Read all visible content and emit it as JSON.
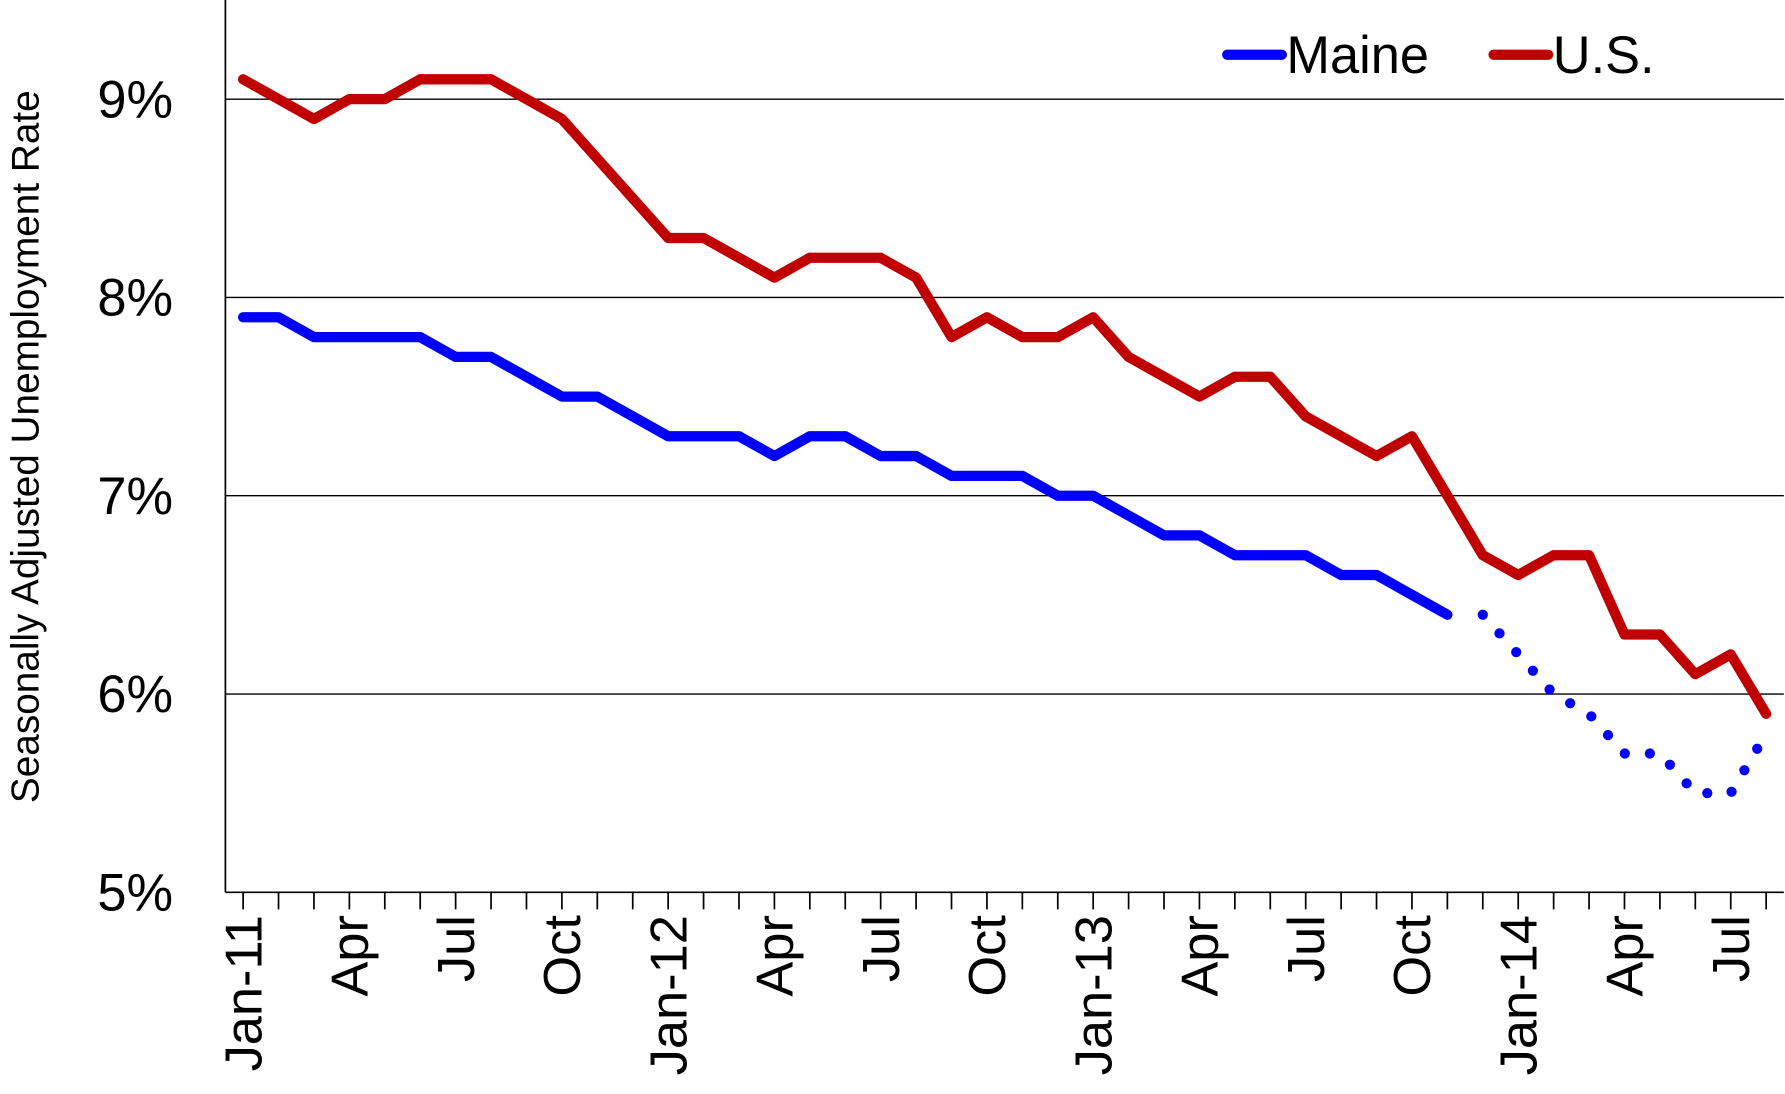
{
  "chart_data": {
    "type": "line",
    "y_label": "Seasonally Adjusted Unemployment Rate",
    "categories": [
      "Jan-11",
      null,
      null,
      "Apr",
      null,
      null,
      "Jul",
      null,
      null,
      "Oct",
      null,
      null,
      "Jan-12",
      null,
      null,
      "Apr",
      null,
      null,
      "Jul",
      null,
      null,
      "Oct",
      null,
      null,
      "Jan-13",
      null,
      null,
      "Apr",
      null,
      null,
      "Jul",
      null,
      null,
      "Oct",
      null,
      null,
      "Jan-14",
      null,
      null,
      "Apr",
      null,
      null,
      "Jul",
      null
    ],
    "series": [
      {
        "name": "Maine",
        "color": "#0000ff",
        "dotted_from": 35,
        "values": [
          7.9,
          7.9,
          7.8,
          7.8,
          7.8,
          7.8,
          7.7,
          7.7,
          7.6,
          7.5,
          7.5,
          7.4,
          7.3,
          7.3,
          7.3,
          7.2,
          7.3,
          7.3,
          7.2,
          7.2,
          7.1,
          7.1,
          7.1,
          7.0,
          7.0,
          6.9,
          6.8,
          6.8,
          6.7,
          6.7,
          6.7,
          6.6,
          6.6,
          6.5,
          6.4,
          6.4,
          6.2,
          6.0,
          5.9,
          5.7,
          5.7,
          5.5,
          5.5,
          5.8
        ]
      },
      {
        "name": "U.S.",
        "color": "#c00000",
        "values": [
          9.1,
          9.0,
          8.9,
          9.0,
          9.0,
          9.1,
          9.1,
          9.1,
          9.0,
          8.9,
          8.7,
          8.5,
          8.3,
          8.3,
          8.2,
          8.1,
          8.2,
          8.2,
          8.2,
          8.1,
          7.8,
          7.9,
          7.8,
          7.8,
          7.9,
          7.7,
          7.6,
          7.5,
          7.6,
          7.6,
          7.4,
          7.3,
          7.2,
          7.3,
          7.0,
          6.7,
          6.6,
          6.7,
          6.7,
          6.3,
          6.3,
          6.1,
          6.2,
          5.9
        ]
      }
    ],
    "ylim": [
      5,
      9.5
    ],
    "yticks": [
      {
        "value": 5,
        "label": "5%"
      },
      {
        "value": 6,
        "label": "6%"
      },
      {
        "value": 7,
        "label": "7%"
      },
      {
        "value": 8,
        "label": "8%"
      },
      {
        "value": 9,
        "label": "9%"
      }
    ],
    "grid": true,
    "legend": "top-right"
  }
}
